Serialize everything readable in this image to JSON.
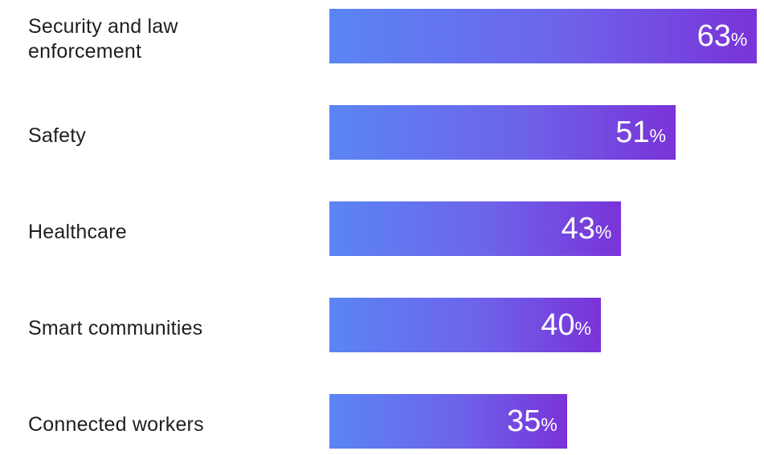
{
  "chart_data": {
    "type": "bar",
    "orientation": "horizontal",
    "categories": [
      "Security and law enforcement",
      "Safety",
      "Healthcare",
      "Smart communities",
      "Connected workers"
    ],
    "category_lines": [
      [
        "Security and law",
        "enforcement"
      ],
      [
        "Safety"
      ],
      [
        "Healthcare"
      ],
      [
        "Smart communities"
      ],
      [
        "Connected workers"
      ]
    ],
    "values": [
      63,
      51,
      43,
      40,
      35
    ],
    "unit": "%",
    "title": "",
    "xlabel": "",
    "ylabel": "",
    "xlim": [
      0,
      100
    ],
    "grid": false,
    "legend": "none",
    "colors": {
      "bar_gradient_start": "#5a85f4",
      "bar_gradient_mid": "#6d63ea",
      "bar_gradient_end": "#7a33d8",
      "label_text": "#1f1f1f",
      "value_text": "#ffffff"
    }
  }
}
